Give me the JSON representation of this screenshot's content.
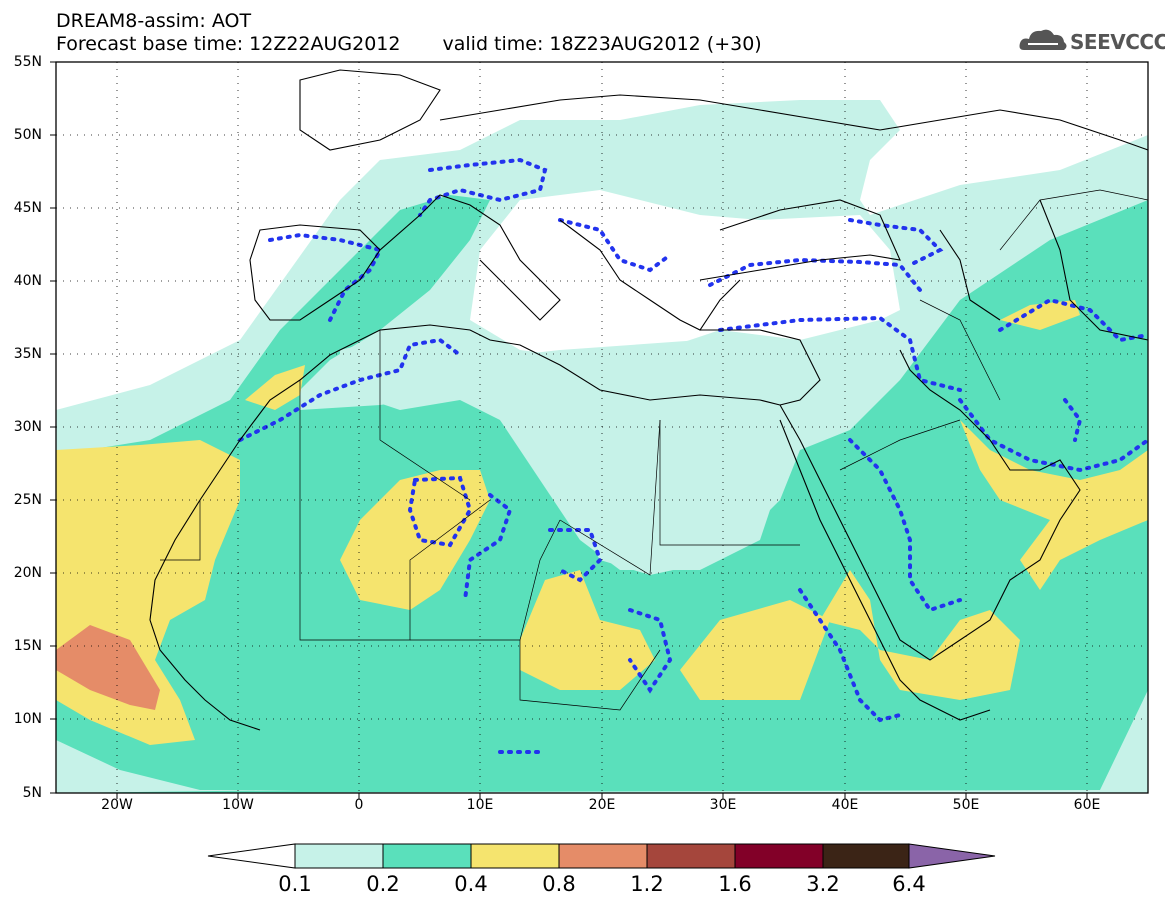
{
  "title": {
    "line1": "DREAM8-assim: AOT",
    "base_time": "Forecast base time: 12Z22AUG2012",
    "valid_time": "valid time: 18Z23AUG2012 (+30)"
  },
  "logo": {
    "text": "SEEVCCC",
    "icon": "cloud-icon",
    "color": "#555555"
  },
  "map": {
    "projection": "lat-lon",
    "lon_range": [
      -25,
      65
    ],
    "lat_range": [
      5,
      55
    ],
    "lat_labels": [
      "55N",
      "50N",
      "45N",
      "40N",
      "35N",
      "30N",
      "25N",
      "20N",
      "15N",
      "10N",
      "5N"
    ],
    "lon_labels": [
      "20W",
      "10W",
      "0",
      "10E",
      "20E",
      "30E",
      "40E",
      "50E",
      "60E"
    ],
    "field": "aerosol optical thickness",
    "contour_style": "dotted blue overlay",
    "contour_color": "#2233ee"
  },
  "colorbar": {
    "levels": [
      "0.1",
      "0.2",
      "0.4",
      "0.8",
      "1.2",
      "1.6",
      "3.2",
      "6.4"
    ],
    "colors": [
      "#ffffff",
      "#c6f2e8",
      "#5ae0bb",
      "#f5e46e",
      "#e58c68",
      "#a5463c",
      "#820028",
      "#3b2416",
      "#8a64a8"
    ]
  }
}
